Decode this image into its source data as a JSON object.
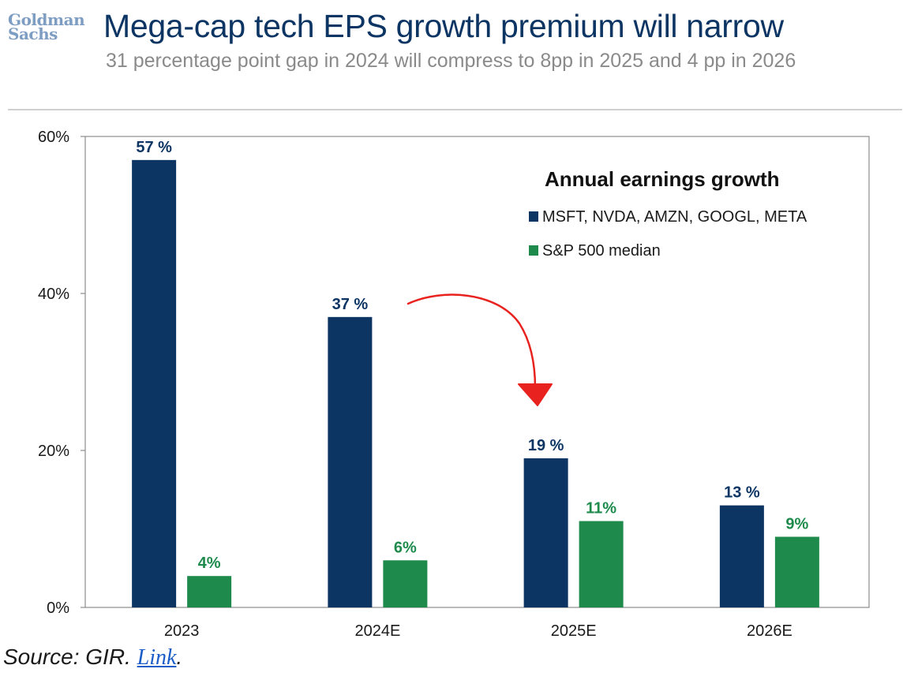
{
  "logo": {
    "line1": "Goldman",
    "line2": "Sachs"
  },
  "header": {
    "title": "Mega-cap tech EPS growth premium will narrow",
    "subtitle": "31 percentage point gap in 2024 will compress to 8pp in 2025 and 4 pp in 2026"
  },
  "source": {
    "prefix": "Source: GIR. ",
    "link": "Link",
    "suffix": "."
  },
  "colors": {
    "mega_cap": "#0d3564",
    "sp500": "#1e8a4c",
    "annotation": "#e8231f"
  },
  "chart_data": {
    "type": "bar",
    "categories": [
      "2023",
      "2024E",
      "2025E",
      "2026E"
    ],
    "ylim": [
      0,
      60
    ],
    "yticks": [
      0,
      20,
      40,
      60
    ],
    "ytick_labels": [
      "0%",
      "20%",
      "40%",
      "60%"
    ],
    "legend_title": "Annual earnings growth",
    "legend_position": "top-right",
    "grid": false,
    "series": [
      {
        "name": "MSFT, NVDA, AMZN, GOOGL, META",
        "values": [
          57,
          37,
          19,
          13
        ],
        "labels": [
          "57 %",
          "37 %",
          "19 %",
          "13 %"
        ]
      },
      {
        "name": "S&P 500 median",
        "values": [
          4,
          6,
          11,
          9
        ],
        "labels": [
          "4%",
          "6%",
          "11%",
          "9%"
        ]
      }
    ]
  }
}
